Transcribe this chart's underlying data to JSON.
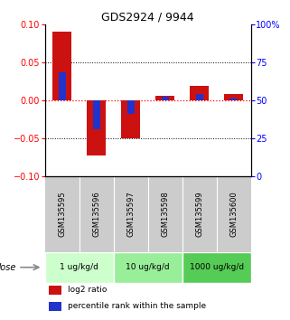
{
  "title": "GDS2924 / 9944",
  "samples": [
    "GSM135595",
    "GSM135596",
    "GSM135597",
    "GSM135598",
    "GSM135599",
    "GSM135600"
  ],
  "log2_ratio": [
    0.09,
    -0.073,
    -0.05,
    0.005,
    0.018,
    0.008
  ],
  "percentile_rank_raw": [
    68,
    31,
    41,
    52,
    54,
    51
  ],
  "ylim_left": [
    -0.1,
    0.1
  ],
  "ylim_right": [
    0,
    100
  ],
  "yticks_left": [
    -0.1,
    -0.05,
    0,
    0.05,
    0.1
  ],
  "yticks_right": [
    0,
    25,
    50,
    75,
    100
  ],
  "ytick_right_labels": [
    "0",
    "25",
    "50",
    "75",
    "100%"
  ],
  "red_color": "#cc1111",
  "blue_color": "#2233cc",
  "dose_groups": [
    {
      "label": "1 ug/kg/d",
      "cols": [
        0,
        1
      ],
      "color": "#ccffcc"
    },
    {
      "label": "10 ug/kg/d",
      "cols": [
        2,
        3
      ],
      "color": "#99ee99"
    },
    {
      "label": "1000 ug/kg/d",
      "cols": [
        4,
        5
      ],
      "color": "#55cc55"
    }
  ],
  "legend_red": "log2 ratio",
  "legend_blue": "percentile rank within the sample",
  "dose_label": "dose",
  "background_color": "#ffffff",
  "sample_box_color": "#cccccc",
  "zero_line_color": "#ff0000"
}
